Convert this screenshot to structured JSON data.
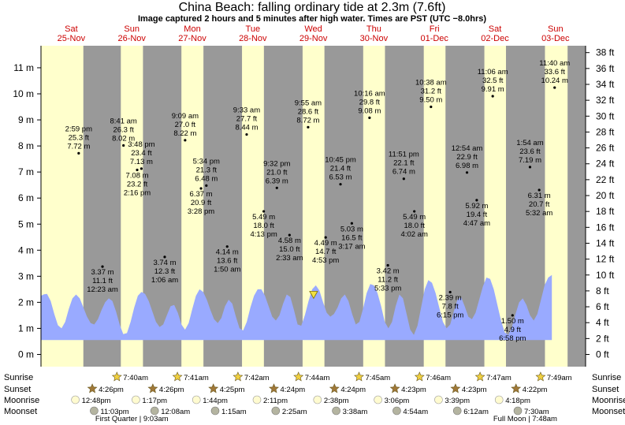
{
  "title": "China Beach: falling  ordinary tide at 2.3m (7.6ft)",
  "subtitle": "Image captured 2 hours and 5 minutes after high water. Times are PST (UTC −8.0hrs)",
  "colors": {
    "day": "#ffffcc",
    "night": "#999999",
    "tide": "#99aaff",
    "day_label": "#cc0000",
    "sun": "#f0d040",
    "sunset": "#a07838",
    "moonrise": "#fffbd0",
    "moonset": "#b4b4a0",
    "now_marker": "#f0e040"
  },
  "chart_data": {
    "type": "area",
    "title": "China Beach: falling  ordinary tide at 2.3m (7.6ft)",
    "x_unit": "days from Sat 25-Nov 00:00 PST",
    "y_left": {
      "unit": "m",
      "range": [
        0,
        11.9
      ],
      "ticks": [
        "0 m",
        "1 m",
        "2 m",
        "3 m",
        "4 m",
        "5 m",
        "6 m",
        "7 m",
        "8 m",
        "9 m",
        "10 m",
        "11 m"
      ]
    },
    "y_right": {
      "unit": "ft",
      "ticks": [
        "0 ft",
        "2 ft",
        "4 ft",
        "6 ft",
        "8 ft",
        "10 ft",
        "12 ft",
        "14 ft",
        "16 ft",
        "18 ft",
        "20 ft",
        "22 ft",
        "24 ft",
        "26 ft",
        "28 ft",
        "30 ft",
        "32 ft",
        "34 ft",
        "36 ft",
        "38 ft"
      ]
    },
    "days": [
      {
        "dow": "Sat",
        "date": "25-Nov"
      },
      {
        "dow": "Sun",
        "date": "26-Nov"
      },
      {
        "dow": "Mon",
        "date": "27-Nov"
      },
      {
        "dow": "Tue",
        "date": "28-Nov"
      },
      {
        "dow": "Wed",
        "date": "29-Nov"
      },
      {
        "dow": "Thu",
        "date": "30-Nov"
      },
      {
        "dow": "Fri",
        "date": "01-Dec"
      },
      {
        "dow": "Sat",
        "date": "02-Dec"
      },
      {
        "dow": "Sun",
        "date": "03-Dec"
      }
    ],
    "daylight": [
      [
        0,
        0.7
      ],
      [
        1.319,
        1.685
      ],
      [
        2.32,
        2.684
      ],
      [
        3.321,
        3.683
      ],
      [
        4.322,
        4.683
      ],
      [
        5.323,
        5.683
      ],
      [
        6.324,
        6.683
      ],
      [
        7.325,
        7.682
      ],
      [
        8.326,
        8.7
      ]
    ],
    "extremes": [
      {
        "t": 0.623,
        "lines": [
          "2:59 pm",
          "25.3 ft",
          "7.72 m"
        ],
        "m": 7.72,
        "side": "above"
      },
      {
        "t": 1.016,
        "lines": [
          "3.37 m",
          "11.1 ft",
          "12:23 am"
        ],
        "m": 3.37,
        "side": "below"
      },
      {
        "t": 1.363,
        "lines": [
          "8:41 am",
          "26.3 ft",
          "8.02 m"
        ],
        "m": 8.02,
        "side": "above"
      },
      {
        "t": 1.659,
        "lines": [
          "3:48 pm",
          "23.4 ft",
          "7.13 m"
        ],
        "m": 7.13,
        "side": "above"
      },
      {
        "t": 1.589,
        "lines": [
          "7.08 m",
          "23.2 ft",
          "2:16 pm"
        ],
        "m": 7.08,
        "side": "below"
      },
      {
        "t": 2.044,
        "lines": [
          "3.74 m",
          "12.3 ft",
          "1:06 am"
        ],
        "m": 3.74,
        "side": "below"
      },
      {
        "t": 2.381,
        "lines": [
          "9:09 am",
          "27.0 ft",
          "8.22 m"
        ],
        "m": 8.22,
        "side": "above"
      },
      {
        "t": 2.732,
        "lines": [
          "5:34 pm",
          "21.3 ft",
          "6.48 m"
        ],
        "m": 6.48,
        "side": "above"
      },
      {
        "t": 2.644,
        "lines": [
          "6.37 m",
          "20.9 ft",
          "3:28 pm"
        ],
        "m": 6.37,
        "side": "below"
      },
      {
        "t": 3.076,
        "lines": [
          "4.14 m",
          "13.6 ft",
          "1:50 am"
        ],
        "m": 4.14,
        "side": "below"
      },
      {
        "t": 3.398,
        "lines": [
          "9:33 am",
          "27.7 ft",
          "8.44 m"
        ],
        "m": 8.44,
        "side": "above"
      },
      {
        "t": 3.68,
        "lines": [
          "5.49 m",
          "18.0 ft",
          "4:13 pm"
        ],
        "m": 5.49,
        "side": "below"
      },
      {
        "t": 3.897,
        "lines": [
          "9:32 pm",
          "21.0 ft",
          "6.39 m"
        ],
        "m": 6.39,
        "side": "above"
      },
      {
        "t": 4.106,
        "lines": [
          "4.58 m",
          "15.0 ft",
          "2:33 am"
        ],
        "m": 4.58,
        "side": "below"
      },
      {
        "t": 4.413,
        "lines": [
          "9:55 am",
          "28.6 ft",
          "8.72 m"
        ],
        "m": 8.72,
        "side": "above"
      },
      {
        "t": 4.703,
        "lines": [
          "4.49 m",
          "14.7 ft",
          "4:53 pm"
        ],
        "m": 4.49,
        "side": "below"
      },
      {
        "t": 4.948,
        "lines": [
          "10:45 pm",
          "21.4 ft",
          "6.53 m"
        ],
        "m": 6.53,
        "side": "above"
      },
      {
        "t": 5.135,
        "lines": [
          "5.03 m",
          "16.5 ft",
          "3:17 am"
        ],
        "m": 5.03,
        "side": "below"
      },
      {
        "t": 5.428,
        "lines": [
          "10:16 am",
          "29.8 ft",
          "9.08 m"
        ],
        "m": 9.08,
        "side": "above"
      },
      {
        "t": 5.731,
        "lines": [
          "3.42 m",
          "11.2 ft",
          "5:33 pm"
        ],
        "m": 3.42,
        "side": "below"
      },
      {
        "t": 5.994,
        "lines": [
          "11:51 pm",
          "22.1 ft",
          "6.74 m"
        ],
        "m": 6.74,
        "side": "above"
      },
      {
        "t": 6.168,
        "lines": [
          "5.49 m",
          "18.0 ft",
          "4:02 am"
        ],
        "m": 5.49,
        "side": "below"
      },
      {
        "t": 6.443,
        "lines": [
          "10:38 am",
          "31.2 ft",
          "9.50 m"
        ],
        "m": 9.5,
        "side": "above"
      },
      {
        "t": 6.76,
        "lines": [
          "2.39 m",
          "7.8 ft",
          "6:15 pm"
        ],
        "m": 2.39,
        "side": "below"
      },
      {
        "t": 7.038,
        "lines": [
          "12:54 am",
          "22.9 ft",
          "6.98 m"
        ],
        "m": 6.98,
        "side": "above"
      },
      {
        "t": 7.199,
        "lines": [
          "5.92 m",
          "19.4 ft",
          "4:47 am"
        ],
        "m": 5.92,
        "side": "below"
      },
      {
        "t": 7.463,
        "lines": [
          "11:06 am",
          "32.5 ft",
          "9.91 m"
        ],
        "m": 9.91,
        "side": "above"
      },
      {
        "t": 7.79,
        "lines": [
          "1.50 m",
          "4.9 ft",
          "6:58 pm"
        ],
        "m": 1.5,
        "side": "below"
      },
      {
        "t": 8.079,
        "lines": [
          "1:54 am",
          "23.6 ft",
          "7.19 m"
        ],
        "m": 7.19,
        "side": "above"
      },
      {
        "t": 8.231,
        "lines": [
          "6.31 m",
          "20.7 ft",
          "5:32 am"
        ],
        "m": 6.31,
        "side": "below"
      },
      {
        "t": 8.486,
        "lines": [
          "11:40 am",
          "33.6 ft",
          "10.24 m"
        ],
        "m": 10.24,
        "side": "above"
      }
    ],
    "tide_curve": [
      [
        0.0,
        2.25
      ],
      [
        0.05,
        2.31
      ],
      [
        0.1,
        2.32
      ],
      [
        0.16,
        2.05
      ],
      [
        0.22,
        1.55
      ],
      [
        0.28,
        1.12
      ],
      [
        0.34,
        1.0
      ],
      [
        0.4,
        1.25
      ],
      [
        0.46,
        1.75
      ],
      [
        0.52,
        2.15
      ],
      [
        0.58,
        2.3
      ],
      [
        0.64,
        2.15
      ],
      [
        0.7,
        1.8
      ],
      [
        0.76,
        1.45
      ],
      [
        0.82,
        1.2
      ],
      [
        0.88,
        1.15
      ],
      [
        0.94,
        1.35
      ],
      [
        1.0,
        1.7
      ],
      [
        1.06,
        2.0
      ],
      [
        1.12,
        2.15
      ],
      [
        1.18,
        2.05
      ],
      [
        1.24,
        1.65
      ],
      [
        1.3,
        1.15
      ],
      [
        1.36,
        0.78
      ],
      [
        1.42,
        0.82
      ],
      [
        1.48,
        1.25
      ],
      [
        1.54,
        1.8
      ],
      [
        1.6,
        2.25
      ],
      [
        1.66,
        2.4
      ],
      [
        1.72,
        2.32
      ],
      [
        1.78,
        2.05
      ],
      [
        1.84,
        1.65
      ],
      [
        1.9,
        1.25
      ],
      [
        1.96,
        1.05
      ],
      [
        2.02,
        1.15
      ],
      [
        2.08,
        1.5
      ],
      [
        2.14,
        1.85
      ],
      [
        2.2,
        1.9
      ],
      [
        2.26,
        1.6
      ],
      [
        2.32,
        1.15
      ],
      [
        2.38,
        0.95
      ],
      [
        2.44,
        1.2
      ],
      [
        2.5,
        1.75
      ],
      [
        2.56,
        2.25
      ],
      [
        2.62,
        2.5
      ],
      [
        2.68,
        2.4
      ],
      [
        2.74,
        2.1
      ],
      [
        2.8,
        1.7
      ],
      [
        2.86,
        1.35
      ],
      [
        2.92,
        1.2
      ],
      [
        2.98,
        1.4
      ],
      [
        3.04,
        1.85
      ],
      [
        3.1,
        2.1
      ],
      [
        3.16,
        1.95
      ],
      [
        3.22,
        1.45
      ],
      [
        3.28,
        1.0
      ],
      [
        3.34,
        0.92
      ],
      [
        3.4,
        1.25
      ],
      [
        3.46,
        1.8
      ],
      [
        3.52,
        2.25
      ],
      [
        3.58,
        2.5
      ],
      [
        3.64,
        2.5
      ],
      [
        3.7,
        2.25
      ],
      [
        3.76,
        1.85
      ],
      [
        3.82,
        1.45
      ],
      [
        3.88,
        1.3
      ],
      [
        3.94,
        1.5
      ],
      [
        4.0,
        1.95
      ],
      [
        4.06,
        2.3
      ],
      [
        4.12,
        2.2
      ],
      [
        4.18,
        1.7
      ],
      [
        4.24,
        1.15
      ],
      [
        4.3,
        1.1
      ],
      [
        4.36,
        1.5
      ],
      [
        4.42,
        2.05
      ],
      [
        4.48,
        2.5
      ],
      [
        4.54,
        2.65
      ],
      [
        4.6,
        2.45
      ],
      [
        4.66,
        2.0
      ],
      [
        4.72,
        1.6
      ],
      [
        4.78,
        1.45
      ],
      [
        4.84,
        1.55
      ],
      [
        4.9,
        1.8
      ],
      [
        4.96,
        2.15
      ],
      [
        5.02,
        2.3
      ],
      [
        5.08,
        2.05
      ],
      [
        5.14,
        1.55
      ],
      [
        5.2,
        1.15
      ],
      [
        5.26,
        1.25
      ],
      [
        5.32,
        1.75
      ],
      [
        5.38,
        2.35
      ],
      [
        5.44,
        2.7
      ],
      [
        5.5,
        2.65
      ],
      [
        5.56,
        2.35
      ],
      [
        5.62,
        1.85
      ],
      [
        5.68,
        1.25
      ],
      [
        5.74,
        1.0
      ],
      [
        5.8,
        1.25
      ],
      [
        5.86,
        1.85
      ],
      [
        5.92,
        2.3
      ],
      [
        5.98,
        2.15
      ],
      [
        6.04,
        1.55
      ],
      [
        6.1,
        0.95
      ],
      [
        6.16,
        0.75
      ],
      [
        6.22,
        1.1
      ],
      [
        6.28,
        1.8
      ],
      [
        6.34,
        2.5
      ],
      [
        6.4,
        2.85
      ],
      [
        6.46,
        2.75
      ],
      [
        6.52,
        2.35
      ],
      [
        6.58,
        1.8
      ],
      [
        6.64,
        1.25
      ],
      [
        6.7,
        1.0
      ],
      [
        6.76,
        1.15
      ],
      [
        6.82,
        1.65
      ],
      [
        6.88,
        2.1
      ],
      [
        6.94,
        2.2
      ],
      [
        7.0,
        1.85
      ],
      [
        7.06,
        1.45
      ],
      [
        7.12,
        1.35
      ],
      [
        7.18,
        1.6
      ],
      [
        7.24,
        2.1
      ],
      [
        7.3,
        2.6
      ],
      [
        7.36,
        2.95
      ],
      [
        7.42,
        2.9
      ],
      [
        7.48,
        2.5
      ],
      [
        7.54,
        1.9
      ],
      [
        7.6,
        1.3
      ],
      [
        7.66,
        0.85
      ],
      [
        7.72,
        0.75
      ],
      [
        7.78,
        1.05
      ],
      [
        7.84,
        1.55
      ],
      [
        7.9,
        2.0
      ],
      [
        7.96,
        2.15
      ],
      [
        8.02,
        1.9
      ],
      [
        8.08,
        1.5
      ],
      [
        8.14,
        1.3
      ],
      [
        8.2,
        1.55
      ],
      [
        8.26,
        2.1
      ],
      [
        8.32,
        2.65
      ],
      [
        8.38,
        2.95
      ],
      [
        8.44,
        3.05
      ]
    ],
    "now": {
      "t": 4.504,
      "m": 2.3
    },
    "tide_base_m": 0.55
  },
  "almanac": {
    "row_labels": [
      "Sunrise",
      "Sunset",
      "Moonrise",
      "Moonset"
    ],
    "sunrise": [
      {
        "t": 1.306,
        "text": "7:40am"
      },
      {
        "t": 2.306,
        "text": "7:41am"
      },
      {
        "t": 3.306,
        "text": "7:42am"
      },
      {
        "t": 4.306,
        "text": "7:44am"
      },
      {
        "t": 5.306,
        "text": "7:45am"
      },
      {
        "t": 6.306,
        "text": "7:46am"
      },
      {
        "t": 7.306,
        "text": "7:47am"
      },
      {
        "t": 8.306,
        "text": "7:49am"
      }
    ],
    "sunset": [
      {
        "t": 0.9,
        "text": "4:26pm"
      },
      {
        "t": 1.9,
        "text": "4:26pm"
      },
      {
        "t": 2.9,
        "text": "4:25pm"
      },
      {
        "t": 3.9,
        "text": "4:24pm"
      },
      {
        "t": 4.9,
        "text": "4:24pm"
      },
      {
        "t": 5.9,
        "text": "4:23pm"
      },
      {
        "t": 6.9,
        "text": "4:23pm"
      },
      {
        "t": 7.9,
        "text": "4:22pm"
      }
    ],
    "moonrise": [
      {
        "t": 0.62,
        "text": "12:48pm"
      },
      {
        "t": 1.62,
        "text": "1:17pm"
      },
      {
        "t": 2.62,
        "text": "1:44pm"
      },
      {
        "t": 3.62,
        "text": "2:11pm"
      },
      {
        "t": 4.62,
        "text": "2:38pm"
      },
      {
        "t": 5.62,
        "text": "3:06pm"
      },
      {
        "t": 6.62,
        "text": "3:39pm"
      },
      {
        "t": 7.62,
        "text": "4:18pm"
      }
    ],
    "moonset": [
      {
        "t": 0.93,
        "text": "11:03pm"
      },
      {
        "t": 1.93,
        "text": "12:08am"
      },
      {
        "t": 2.93,
        "text": "1:15am"
      },
      {
        "t": 3.93,
        "text": "2:25am"
      },
      {
        "t": 4.93,
        "text": "3:38am"
      },
      {
        "t": 5.93,
        "text": "4:54am"
      },
      {
        "t": 6.93,
        "text": "6:12am"
      },
      {
        "t": 7.93,
        "text": "7:30am"
      }
    ],
    "phases": [
      {
        "t": 1.5,
        "text": "First Quarter | 9:03am"
      },
      {
        "t": 8.0,
        "text": "Full Moon | 7:48am"
      }
    ]
  }
}
